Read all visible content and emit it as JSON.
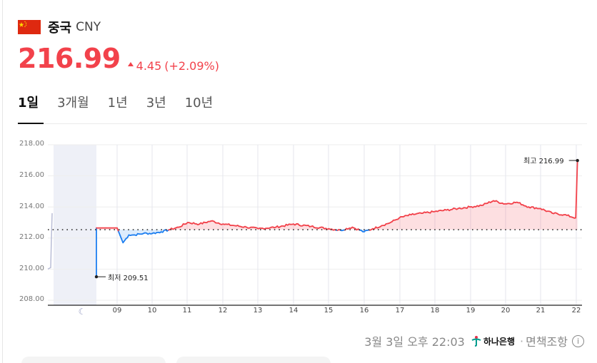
{
  "header": {
    "country": "중국",
    "currency_code": "CNY",
    "flag": "china-flag"
  },
  "quote": {
    "price": "216.99",
    "change": "4.45",
    "change_pct": "(+2.09%)",
    "direction": "up",
    "color": "#f2424b"
  },
  "tabs": [
    {
      "label": "1일",
      "active": true
    },
    {
      "label": "3개월",
      "active": false
    },
    {
      "label": "1년",
      "active": false
    },
    {
      "label": "3년",
      "active": false
    },
    {
      "label": "10년",
      "active": false
    }
  ],
  "annotations": {
    "high_label": "최고 216.99",
    "low_label": "최저 209.51"
  },
  "footer": {
    "timestamp": "3월 3일 오후 22:03",
    "bank": "하나은행",
    "separator": "·",
    "disclaimer": "면책조항",
    "info": "i"
  },
  "chart_data": {
    "type": "line",
    "title": "CNY 1일",
    "xlabel": "",
    "ylabel": "",
    "ylim": [
      208,
      218
    ],
    "y_ticks": [
      "218.00",
      "216.00",
      "214.00",
      "212.00",
      "210.00",
      "208.00"
    ],
    "x_ticks": [
      "☾",
      "09",
      "10",
      "11",
      "12",
      "13",
      "14",
      "15",
      "16",
      "17",
      "18",
      "19",
      "20",
      "21",
      "22"
    ],
    "grid": true,
    "baseline": 212.54,
    "up_color": "#f2424b",
    "down_color": "#1e7ff0",
    "night_segment": {
      "x": [
        "night-start",
        "night-end"
      ],
      "y": [
        210.0,
        210.1,
        212.0,
        213.6
      ]
    },
    "series": [
      {
        "name": "CNY",
        "x": [
          "08:30",
          "08:45",
          "09:00",
          "09:10",
          "09:20",
          "09:30",
          "09:45",
          "10:00",
          "10:15",
          "10:30",
          "10:45",
          "11:00",
          "11:20",
          "11:40",
          "12:00",
          "12:20",
          "12:40",
          "13:00",
          "13:30",
          "14:00",
          "14:30",
          "15:00",
          "15:20",
          "15:40",
          "16:00",
          "16:15",
          "16:30",
          "16:45",
          "17:00",
          "17:20",
          "17:40",
          "18:00",
          "18:20",
          "18:40",
          "19:00",
          "19:20",
          "19:40",
          "20:00",
          "20:20",
          "20:40",
          "21:00",
          "21:20",
          "21:40",
          "22:00",
          "22:03"
        ],
        "values": [
          212.65,
          212.65,
          212.65,
          211.7,
          212.2,
          212.2,
          212.3,
          212.3,
          212.4,
          212.55,
          212.7,
          213.0,
          212.9,
          213.1,
          212.9,
          212.8,
          212.7,
          212.6,
          212.7,
          212.9,
          212.75,
          212.6,
          212.5,
          212.7,
          212.4,
          212.6,
          212.8,
          213.0,
          213.3,
          213.5,
          213.6,
          213.7,
          213.8,
          213.9,
          214.0,
          214.1,
          214.4,
          214.2,
          214.3,
          214.0,
          213.9,
          213.6,
          213.5,
          213.3,
          216.99
        ]
      }
    ],
    "high": {
      "label": "최고",
      "value": 216.99
    },
    "low": {
      "label": "최저",
      "value": 209.51
    }
  }
}
